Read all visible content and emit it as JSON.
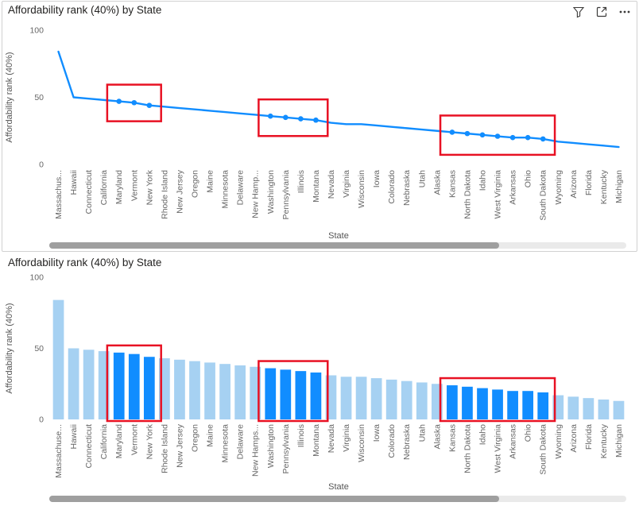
{
  "visual_header": {
    "icons": [
      "filter",
      "focus-mode",
      "more-options"
    ]
  },
  "chart_data": [
    {
      "type": "line",
      "title": "Affordability rank (40%) by State",
      "xlabel": "State",
      "ylabel": "Affordability rank (40%)",
      "ylim": [
        0,
        100
      ],
      "yticks": [
        0,
        50,
        100
      ],
      "grid": false,
      "legend": false,
      "categories": [
        "Massachus...",
        "Hawaii",
        "Connecticut",
        "California",
        "Maryland",
        "Vermont",
        "New York",
        "Rhode Island",
        "New Jersey",
        "Oregon",
        "Maine",
        "Minnesota",
        "Delaware",
        "New Hamp...",
        "Washington",
        "Pennsylvania",
        "Illinois",
        "Montana",
        "Nevada",
        "Virginia",
        "Wisconsin",
        "Iowa",
        "Colorado",
        "Nebraska",
        "Utah",
        "Alaska",
        "Kansas",
        "North Dakota",
        "Idaho",
        "West Virginia",
        "Arkansas",
        "Ohio",
        "South Dakota",
        "Wyoming",
        "Arizona",
        "Florida",
        "Kentucky",
        "Michigan"
      ],
      "values": [
        84,
        50,
        49,
        48,
        47,
        46,
        44,
        43,
        42,
        41,
        40,
        39,
        38,
        37,
        36,
        35,
        34,
        33,
        31,
        30,
        30,
        29,
        28,
        27,
        26,
        25,
        24,
        23,
        22,
        21,
        20,
        20,
        19,
        17,
        16,
        15,
        14,
        13
      ],
      "highlighted": [
        "Maryland",
        "Vermont",
        "New York",
        "Washington",
        "Pennsylvania",
        "Illinois",
        "Montana",
        "Kansas",
        "North Dakota",
        "Idaho",
        "West Virginia",
        "Arkansas",
        "Ohio",
        "South Dakota"
      ],
      "highlight_boxes": [
        [
          4,
          6
        ],
        [
          14,
          17
        ],
        [
          26,
          32
        ]
      ],
      "colors": {
        "line": "#118DFF",
        "marker": "#118DFF",
        "box": "#E81123"
      }
    },
    {
      "type": "bar",
      "title": "Affordability rank (40%) by State",
      "xlabel": "State",
      "ylabel": "Affordability rank (40%)",
      "ylim": [
        0,
        100
      ],
      "yticks": [
        0,
        50,
        100
      ],
      "grid": false,
      "legend": false,
      "categories": [
        "Massachuse...",
        "Hawaii",
        "Connecticut",
        "California",
        "Maryland",
        "Vermont",
        "New York",
        "Rhode Island",
        "New Jersey",
        "Oregon",
        "Maine",
        "Minnesota",
        "Delaware",
        "New Hamps...",
        "Washington",
        "Pennsylvania",
        "Illinois",
        "Montana",
        "Nevada",
        "Virginia",
        "Wisconsin",
        "Iowa",
        "Colorado",
        "Nebraska",
        "Utah",
        "Alaska",
        "Kansas",
        "North Dakota",
        "Idaho",
        "West Virginia",
        "Arkansas",
        "Ohio",
        "South Dakota",
        "Wyoming",
        "Arizona",
        "Florida",
        "Kentucky",
        "Michigan"
      ],
      "values": [
        84,
        50,
        49,
        48,
        47,
        46,
        44,
        43,
        42,
        41,
        40,
        39,
        38,
        37,
        36,
        35,
        34,
        33,
        31,
        30,
        30,
        29,
        28,
        27,
        26,
        25,
        24,
        23,
        22,
        21,
        20,
        20,
        19,
        17,
        16,
        15,
        14,
        13
      ],
      "highlighted": [
        "Maryland",
        "Vermont",
        "New York",
        "Washington",
        "Pennsylvania",
        "Illinois",
        "Montana",
        "Kansas",
        "North Dakota",
        "Idaho",
        "West Virginia",
        "Arkansas",
        "Ohio",
        "South Dakota"
      ],
      "highlight_boxes": [
        [
          4,
          6
        ],
        [
          14,
          17
        ],
        [
          26,
          32
        ]
      ],
      "colors": {
        "bar": "#A6D1F2",
        "bar_highlight": "#118DFF",
        "box": "#E81123"
      }
    }
  ]
}
